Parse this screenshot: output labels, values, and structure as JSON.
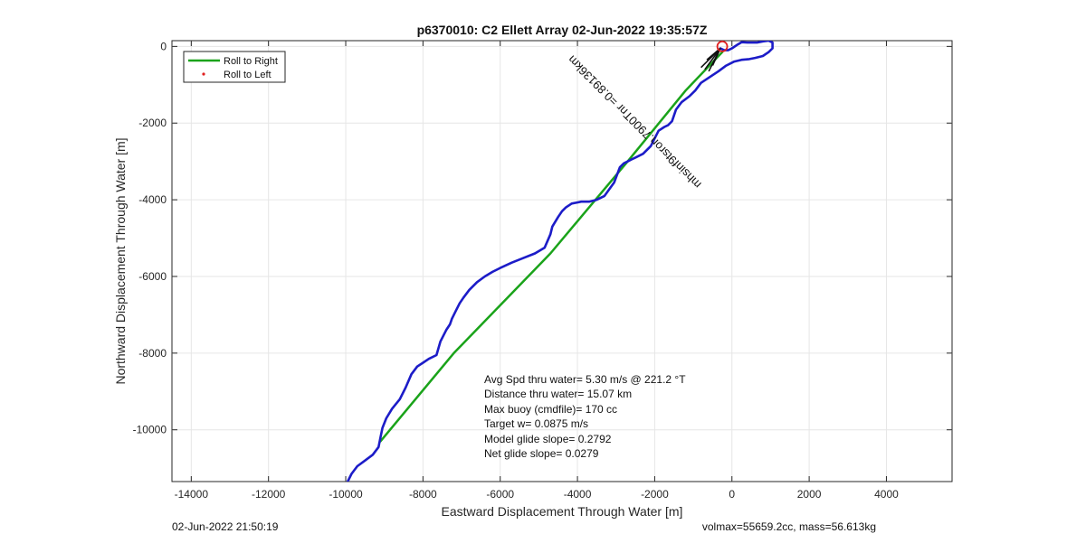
{
  "chart_data": {
    "type": "line",
    "title": "p6370010: C2 Ellett Array 02-Jun-2022 19:35:57Z",
    "xlabel": "Eastward Displacement Through Water [m]",
    "ylabel": "Northward Displacement Through Water [m]",
    "xlim": [
      -14500,
      5700
    ],
    "ylim": [
      -11350,
      150
    ],
    "xticks": [
      -14000,
      -12000,
      -10000,
      -8000,
      -6000,
      -4000,
      -2000,
      0,
      2000,
      4000
    ],
    "yticks": [
      0,
      -2000,
      -4000,
      -6000,
      -8000,
      -10000
    ],
    "grid": true,
    "legend_position": "top-left",
    "legend": [
      {
        "label": "Roll to Right",
        "style": "line",
        "color": "#1aa31a"
      },
      {
        "label": "Roll to Left",
        "style": "marker",
        "color": "#e02020"
      }
    ],
    "series": [
      {
        "name": "Roll to Right",
        "color": "#1aa31a",
        "x": [
          -9100,
          -7200,
          -4700,
          -2700,
          -1200,
          -250
        ],
        "y": [
          -10300,
          -8000,
          -5400,
          -3000,
          -1150,
          -150
        ]
      },
      {
        "color": "#1c1cc8",
        "x": [
          -9950,
          -9850,
          -9700,
          -9500,
          -9300,
          -9150,
          -9100,
          -9050,
          -8950,
          -8800,
          -8600,
          -8450,
          -8300,
          -8150,
          -8000,
          -7850,
          -7650,
          -7550,
          -7400,
          -7300,
          -7250,
          -7150,
          -7050,
          -6950,
          -6800,
          -6600,
          -6400,
          -6200,
          -6000,
          -5700,
          -5400,
          -5100,
          -4850,
          -4700,
          -4650,
          -4500,
          -4400,
          -4300,
          -4150,
          -3900,
          -3700,
          -3500,
          -3300,
          -3050,
          -2900,
          -2800,
          -2700,
          -2600,
          -2500,
          -2300,
          -2100,
          -1900,
          -1750,
          -1650,
          -1550,
          -1450,
          -1300,
          -1100,
          -950,
          -800,
          -650,
          -500,
          -350,
          -150,
          50,
          250,
          450,
          600,
          800,
          950,
          1050,
          1050,
          950,
          800,
          650,
          500,
          400,
          250,
          150,
          0,
          -100,
          -200,
          -300
        ],
        "y": [
          -11350,
          -11150,
          -10950,
          -10800,
          -10650,
          -10450,
          -10200,
          -9950,
          -9700,
          -9450,
          -9200,
          -8900,
          -8550,
          -8350,
          -8250,
          -8150,
          -8050,
          -7700,
          -7400,
          -7250,
          -7100,
          -6900,
          -6700,
          -6550,
          -6350,
          -6150,
          -6000,
          -5880,
          -5780,
          -5640,
          -5520,
          -5400,
          -5250,
          -4900,
          -4700,
          -4450,
          -4300,
          -4200,
          -4100,
          -4050,
          -4050,
          -4000,
          -3900,
          -3550,
          -3150,
          -3050,
          -3000,
          -2950,
          -2900,
          -2800,
          -2600,
          -2200,
          -2100,
          -2050,
          -1950,
          -1650,
          -1450,
          -1300,
          -1150,
          -950,
          -850,
          -750,
          -650,
          -500,
          -400,
          -350,
          -330,
          -300,
          -250,
          -150,
          -50,
          100,
          150,
          130,
          100,
          100,
          100,
          110,
          50,
          -50,
          -100,
          -100,
          -50
        ]
      }
    ],
    "annotations": {
      "track_label": "mhsinf9tsron.7900Tnr =0.89136km",
      "track_label_x": -2450,
      "track_label_y": -1900,
      "track_label_angle_deg": -135,
      "start_marker": {
        "x": -250,
        "y": 0,
        "color": "#e02020"
      },
      "arrow_tip": {
        "x": -300,
        "y": -50
      },
      "arrow_tails": [
        {
          "x": -800,
          "y": -550
        },
        {
          "x": -700,
          "y": -600
        },
        {
          "x": -600,
          "y": -650
        },
        {
          "x": -500,
          "y": -500
        },
        {
          "x": -650,
          "y": -350
        }
      ]
    }
  },
  "stats": {
    "line1": "Avg Spd thru water=  5.30 m/s @ 221.2 °T",
    "line2": "Distance thru water= 15.07 km",
    "line3": "Max buoy (cmdfile)= 170 cc",
    "line4": "Target w= 0.0875 m/s",
    "line5": "Model glide slope= 0.2792",
    "line6": "Net glide slope= 0.0279"
  },
  "footer": {
    "left": "02-Jun-2022 21:50:19",
    "right": "volmax=55659.2cc, mass=56.613kg"
  }
}
